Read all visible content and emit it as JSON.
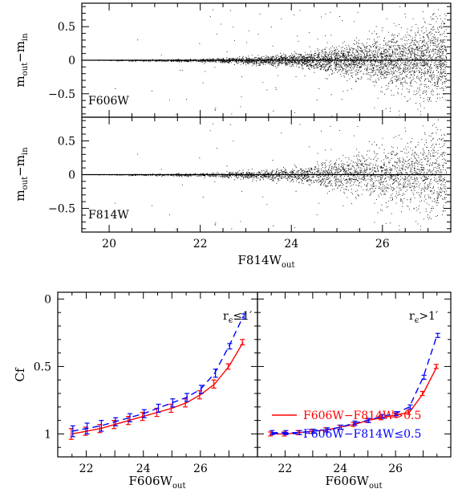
{
  "chart_data": [
    {
      "type": "scatter",
      "panel_label": "F606W",
      "ylabel": {
        "main_a": "m",
        "sub_a": "out",
        "minus": "−",
        "main_b": "m",
        "sub_b": "in"
      },
      "xlim": [
        19.4,
        27.5
      ],
      "ylim": [
        0.85,
        -0.85
      ],
      "yticks": [
        -0.5,
        0,
        0.5
      ],
      "ytick_labels": [
        "−0.5",
        "0",
        "0.5"
      ],
      "xticks": [
        20,
        22,
        24,
        26
      ],
      "reference_line_y": 0,
      "scatter_model": {
        "x_range": [
          19.6,
          27.4
        ],
        "density": "increasing with magnitude",
        "spread_sigma_at_x": [
          [
            20,
            0.003
          ],
          [
            22,
            0.01
          ],
          [
            24,
            0.045
          ],
          [
            25,
            0.09
          ],
          [
            26,
            0.17
          ],
          [
            27,
            0.28
          ]
        ]
      }
    },
    {
      "type": "scatter",
      "panel_label": "F814W",
      "ylabel": {
        "main_a": "m",
        "sub_a": "out",
        "minus": "−",
        "main_b": "m",
        "sub_b": "in"
      },
      "xlabel": {
        "main": "F814W",
        "sub": "out"
      },
      "xlim": [
        19.4,
        27.5
      ],
      "ylim": [
        0.85,
        -0.85
      ],
      "yticks": [
        -0.5,
        0,
        0.5
      ],
      "ytick_labels": [
        "−0.5",
        "0",
        "0.5"
      ],
      "xticks": [
        20,
        22,
        24,
        26
      ],
      "xtick_labels": [
        "20",
        "22",
        "24",
        "26"
      ],
      "reference_line_y": 0,
      "scatter_model": {
        "x_range": [
          19.6,
          27.4
        ],
        "density": "increasing with magnitude",
        "spread_sigma_at_x": [
          [
            20,
            0.003
          ],
          [
            22,
            0.012
          ],
          [
            24,
            0.05
          ],
          [
            25,
            0.1
          ],
          [
            26,
            0.19
          ],
          [
            27,
            0.3
          ]
        ]
      }
    },
    {
      "type": "line",
      "annotation": {
        "r": "r",
        "sub": "ϵ",
        "rest": "≤1′"
      },
      "ylabel": "Cf",
      "xlabel": {
        "main": "F606W",
        "sub": "out"
      },
      "xlim": [
        21,
        28
      ],
      "ylim": [
        -0.05,
        1.17
      ],
      "yticks": [
        0,
        0.5,
        1
      ],
      "ytick_labels": [
        "0",
        "0.5",
        "1"
      ],
      "xticks": [
        22,
        23,
        24,
        25,
        26,
        27,
        28
      ],
      "xtick_labels": [
        "22",
        "24",
        "26"
      ],
      "xtick_label_values": [
        22,
        24,
        26
      ],
      "series": [
        {
          "color": "#ff0000",
          "dash": false,
          "x": [
            21.5,
            22.0,
            22.5,
            23.0,
            23.5,
            24.0,
            24.5,
            25.0,
            25.5,
            26.0,
            26.5,
            27.0,
            27.5
          ],
          "values": [
            1.0,
            0.98,
            0.96,
            0.93,
            0.9,
            0.87,
            0.84,
            0.81,
            0.77,
            0.71,
            0.63,
            0.5,
            0.32
          ],
          "err": [
            0.04,
            0.03,
            0.03,
            0.03,
            0.03,
            0.03,
            0.03,
            0.03,
            0.03,
            0.03,
            0.03,
            0.02,
            0.02
          ]
        },
        {
          "color": "#0000ff",
          "dash": true,
          "x": [
            21.5,
            22.0,
            22.5,
            23.0,
            23.5,
            24.0,
            24.5,
            25.0,
            25.5,
            26.0,
            26.5,
            27.0,
            27.5
          ],
          "values": [
            0.98,
            0.96,
            0.94,
            0.91,
            0.88,
            0.85,
            0.81,
            0.77,
            0.73,
            0.67,
            0.55,
            0.35,
            0.13
          ],
          "err": [
            0.04,
            0.04,
            0.04,
            0.03,
            0.03,
            0.03,
            0.03,
            0.03,
            0.03,
            0.03,
            0.03,
            0.02,
            0.02
          ]
        }
      ]
    },
    {
      "type": "line",
      "annotation": {
        "r": "r",
        "sub": "ϵ",
        "rest": ">1′"
      },
      "xlabel": {
        "main": "F606W",
        "sub": "out"
      },
      "xlim": [
        21,
        28
      ],
      "ylim": [
        -0.05,
        1.17
      ],
      "yticks": [
        0,
        0.5,
        1
      ],
      "xticks": [
        22,
        23,
        24,
        25,
        26,
        27,
        28
      ],
      "xtick_labels": [
        "22",
        "24",
        "26"
      ],
      "xtick_label_values": [
        22,
        24,
        26
      ],
      "legend": [
        {
          "label": "F606W−F814W>0.5",
          "color": "#ff0000",
          "dash": false
        },
        {
          "label": "F606W−F814W≤0.5",
          "color": "#0000ff",
          "dash": true
        }
      ],
      "series": [
        {
          "color": "#ff0000",
          "dash": false,
          "x": [
            21.5,
            22.0,
            22.5,
            23.0,
            23.5,
            24.0,
            24.5,
            25.0,
            25.5,
            26.0,
            26.5,
            27.0,
            27.5
          ],
          "values": [
            1.0,
            1.0,
            0.99,
            0.98,
            0.97,
            0.95,
            0.93,
            0.9,
            0.88,
            0.86,
            0.84,
            0.7,
            0.5
          ],
          "err": [
            0.015,
            0.015,
            0.015,
            0.015,
            0.015,
            0.015,
            0.015,
            0.015,
            0.015,
            0.015,
            0.015,
            0.015,
            0.015
          ]
        },
        {
          "color": "#0000ff",
          "dash": true,
          "x": [
            21.5,
            22.0,
            22.5,
            23.0,
            23.5,
            24.0,
            24.5,
            25.0,
            25.5,
            26.0,
            26.5,
            27.0,
            27.5
          ],
          "values": [
            0.99,
            0.99,
            0.99,
            0.98,
            0.97,
            0.95,
            0.92,
            0.9,
            0.87,
            0.85,
            0.8,
            0.58,
            0.27
          ],
          "err": [
            0.015,
            0.015,
            0.015,
            0.015,
            0.015,
            0.015,
            0.015,
            0.015,
            0.015,
            0.015,
            0.015,
            0.015,
            0.015
          ]
        }
      ]
    }
  ]
}
